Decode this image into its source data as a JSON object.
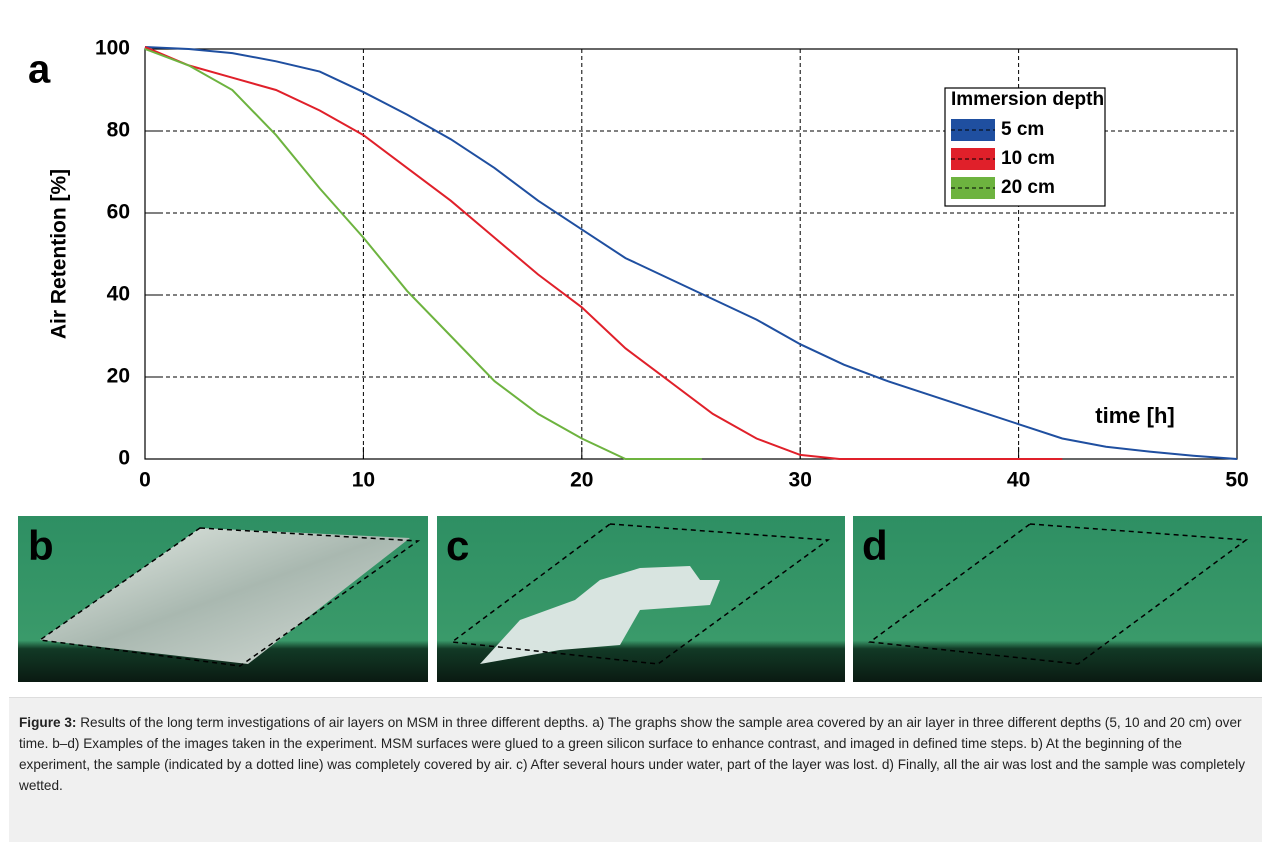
{
  "chart_data": {
    "type": "line",
    "panel_label": "a",
    "y_label": "Air Retention [%]",
    "x_label": "time [h]",
    "legend_title": "Immersion depth",
    "xlim": [
      0,
      50
    ],
    "xticks": [
      0,
      10,
      20,
      30,
      40,
      50
    ],
    "ylim": [
      0,
      100
    ],
    "yticks": [
      0,
      20,
      40,
      60,
      80,
      100
    ],
    "grid": true,
    "series": [
      {
        "name": "5 cm",
        "color": "#1f4fa0",
        "x": [
          0,
          2,
          4,
          6,
          8,
          10,
          12,
          14,
          16,
          18,
          20,
          22,
          24,
          26,
          28,
          30,
          32,
          34,
          36,
          38,
          40,
          42,
          44,
          46,
          48,
          50
        ],
        "values": [
          100.5,
          100,
          99,
          97,
          94.5,
          89.5,
          84,
          78,
          71,
          63,
          56,
          49,
          44,
          39,
          34,
          28,
          23,
          19,
          15.5,
          12,
          8.5,
          5,
          3,
          1.8,
          0.8,
          0
        ]
      },
      {
        "name": "10 cm",
        "color": "#e0202a",
        "x": [
          0,
          2,
          4,
          6,
          8,
          10,
          12,
          14,
          16,
          18,
          20,
          22,
          24,
          26,
          28,
          30,
          31.8,
          36,
          42
        ],
        "values": [
          100.5,
          96,
          93,
          90,
          85,
          79,
          71,
          63,
          54,
          45,
          37,
          27,
          19,
          11,
          5,
          1,
          0,
          0,
          0
        ]
      },
      {
        "name": "20 cm",
        "color": "#6db33f",
        "x": [
          0,
          2,
          4,
          6,
          8,
          10,
          12,
          14,
          16,
          18,
          20,
          22,
          25.5
        ],
        "values": [
          100,
          96,
          90,
          79,
          66,
          54,
          41,
          30,
          19,
          11,
          5,
          0,
          0
        ]
      }
    ]
  },
  "photos": [
    {
      "label": "b"
    },
    {
      "label": "c"
    },
    {
      "label": "d"
    }
  ],
  "caption": {
    "label": "Figure 3:",
    "text": "Results of the long term investigations of air layers on MSM in three different depths. a) The graphs show the sample area covered by an air layer in three different depths (5, 10 and 20 cm) over time. b–d) Examples of the images taken in the experiment. MSM surfaces were glued to a green silicon surface to enhance contrast, and imaged in defined time steps. b) At the beginning of the experiment, the sample (indicated by a dotted line) was completely covered by air. c) After several hours under water, part of the layer was lost. d) Finally, all the air was lost and the sample was completely wetted."
  }
}
